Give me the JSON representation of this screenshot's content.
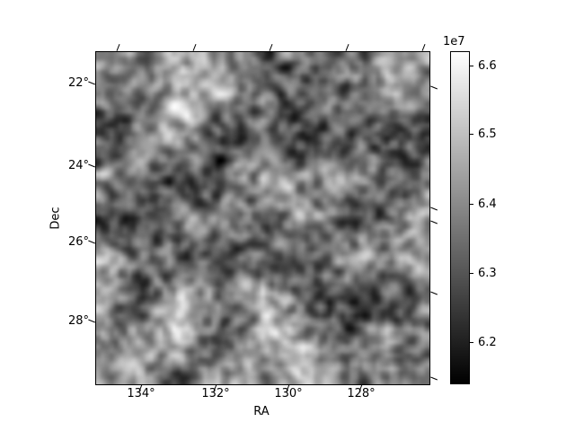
{
  "figure": {
    "background": "#ffffff",
    "text_color": "#000000"
  },
  "chart_data": {
    "type": "heatmap",
    "title": "",
    "xlabel": "RA",
    "ylabel": "Dec",
    "x_tick_labels": [
      "134°",
      "132°",
      "130°",
      "128°"
    ],
    "x_tick_values": [
      134,
      132,
      130,
      128
    ],
    "y_tick_labels": [
      "22°",
      "24°",
      "26°",
      "28°"
    ],
    "y_tick_values": [
      22,
      24,
      26,
      28
    ],
    "x_range": [
      135.2,
      126.2
    ],
    "y_range": [
      21.2,
      29.6
    ],
    "x_axis_direction": "decreasing-right",
    "colormap": "gray",
    "grid": false,
    "legend": "none",
    "colorbar": {
      "exponent_label": "1e7",
      "tick_labels": [
        "6.6",
        "6.5",
        "6.4",
        "6.3",
        "6.2"
      ],
      "tick_values": [
        66000000,
        65000000,
        64000000,
        63000000,
        62000000
      ],
      "vmin": 61400000,
      "vmax": 66200000,
      "orientation": "vertical",
      "gradient_top": "#ffffff",
      "gradient_bottom": "#000000"
    },
    "values_description": "smoothed random grayscale noise field spanning the full RA/Dec extent; mid-gray dominant with bright band near Dec 25-26 and dark patches near Dec 23.5 and 27",
    "noise": {
      "seed": 42,
      "grid_size": 75,
      "coarse_grid_size": 9,
      "fine_weight": 0.62,
      "coarse_weight": 0.38,
      "blur_passes": 1
    }
  }
}
